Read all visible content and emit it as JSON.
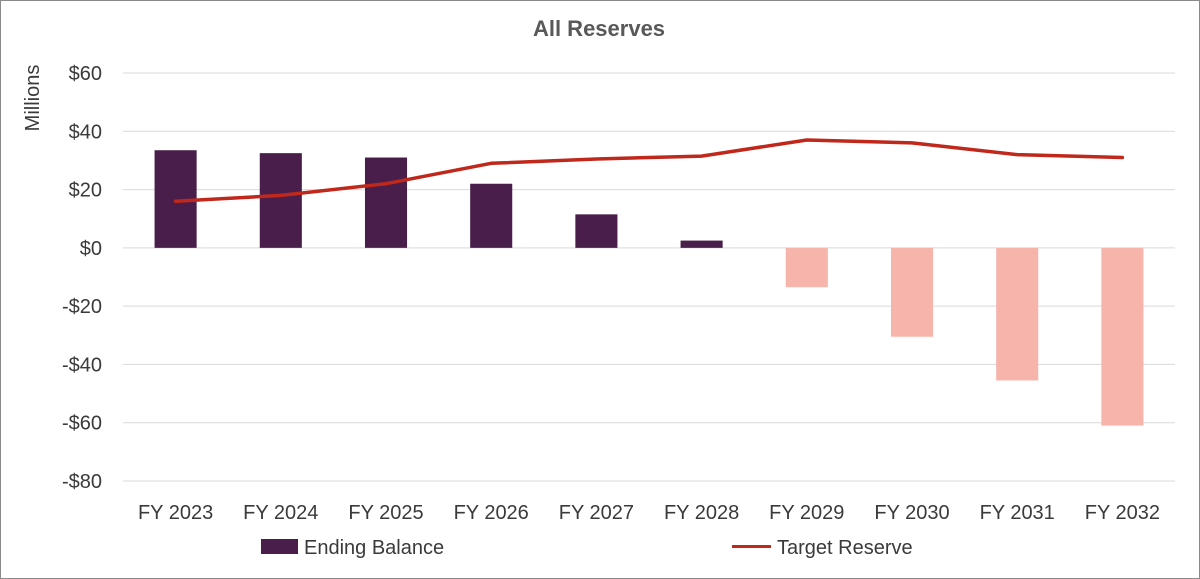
{
  "chart_data": {
    "type": "bar+line",
    "title": "All Reserves",
    "ylabel": "Millions",
    "xlabel": "",
    "categories": [
      "FY 2023",
      "FY 2024",
      "FY 2025",
      "FY 2026",
      "FY 2027",
      "FY 2028",
      "FY 2029",
      "FY 2030",
      "FY 2031",
      "FY 2032"
    ],
    "ylim": [
      -80,
      60
    ],
    "ytick_step": 20,
    "ytick_labels": [
      "$60",
      "$40",
      "$20",
      "$0",
      "-$20",
      "-$40",
      "-$60",
      "-$80"
    ],
    "ytick_values": [
      60,
      40,
      20,
      0,
      -20,
      -40,
      -60,
      -80
    ],
    "grid": true,
    "legend_position": "bottom",
    "series": [
      {
        "name": "Ending Balance",
        "kind": "bar",
        "values": [
          33.5,
          32.5,
          31,
          22,
          11.5,
          2.5,
          -13.5,
          -30.5,
          -45.5,
          -61
        ],
        "color_positive": "#4a1e4a",
        "color_negative": "#f7b4aa"
      },
      {
        "name": "Target Reserve",
        "kind": "line",
        "values": [
          16,
          18,
          22,
          29,
          30.5,
          31.5,
          37,
          36,
          32,
          31
        ],
        "color": "#c0281c"
      }
    ]
  }
}
